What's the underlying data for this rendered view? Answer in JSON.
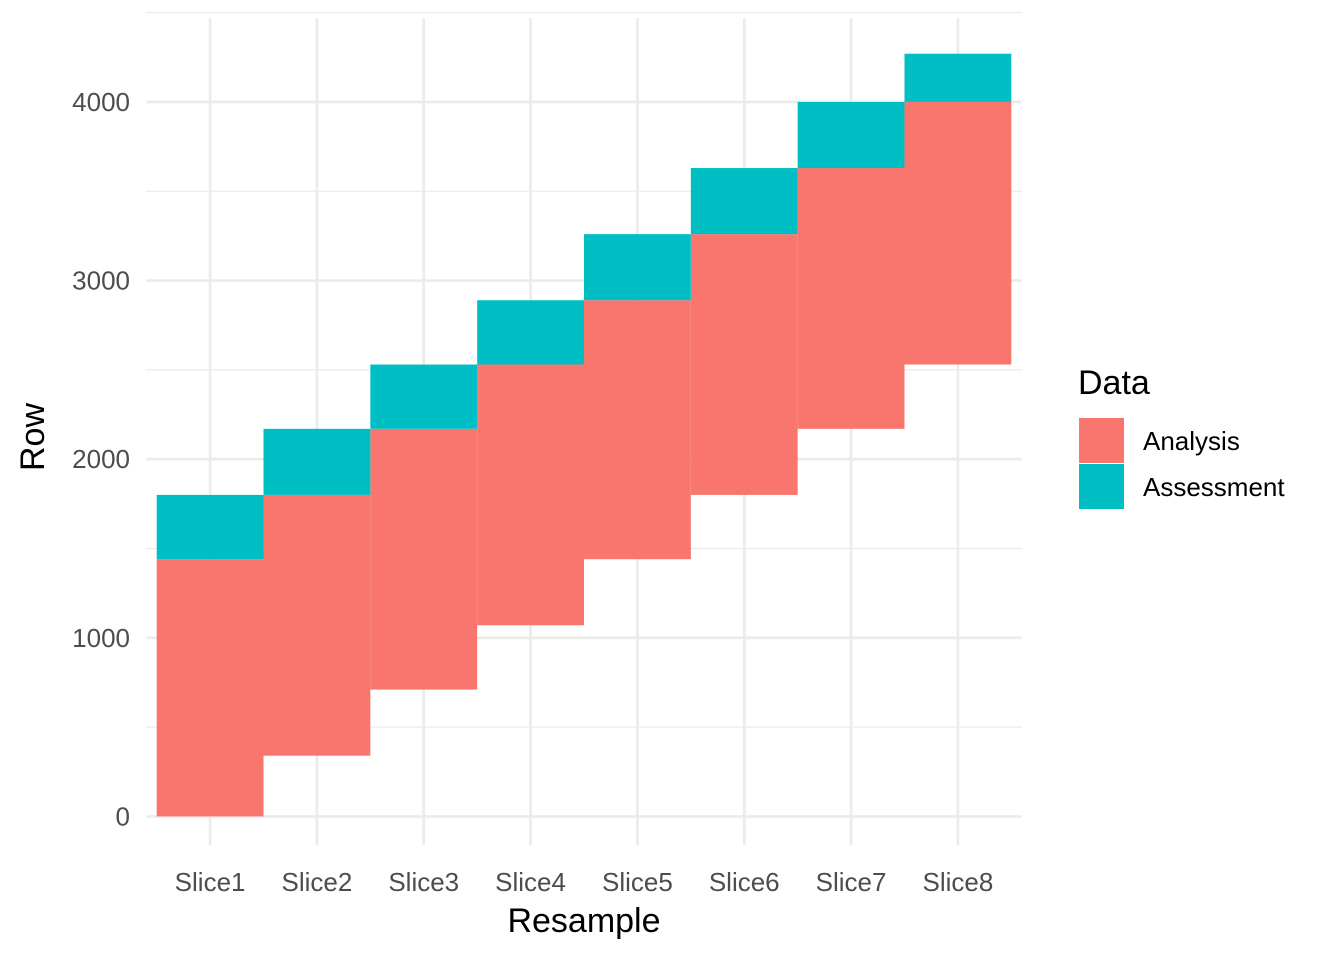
{
  "chart_data": {
    "type": "bar",
    "subtype": "stacked-range",
    "xlabel": "Resample",
    "ylabel": "Row",
    "categories": [
      "Slice1",
      "Slice2",
      "Slice3",
      "Slice4",
      "Slice5",
      "Slice6",
      "Slice7",
      "Slice8"
    ],
    "ylim": [
      -160,
      4470
    ],
    "y_ticks": [
      0,
      1000,
      2000,
      3000,
      4000
    ],
    "y_tick_labels": [
      "0",
      "1000",
      "2000",
      "3000",
      "4000"
    ],
    "grid": true,
    "legend": {
      "title": "Data",
      "position": "right",
      "entries": [
        {
          "label": "Analysis",
          "color": "#F8766D"
        },
        {
          "label": "Assessment",
          "color": "#00BFC4"
        }
      ]
    },
    "series": [
      {
        "name": "Analysis",
        "color": "#F8766D",
        "ranges": [
          [
            0,
            1440
          ],
          [
            340,
            1800
          ],
          [
            710,
            2170
          ],
          [
            1070,
            2530
          ],
          [
            1440,
            2890
          ],
          [
            1800,
            3260
          ],
          [
            2170,
            3630
          ],
          [
            2530,
            4000
          ]
        ]
      },
      {
        "name": "Assessment",
        "color": "#00BFC4",
        "ranges": [
          [
            1440,
            1800
          ],
          [
            1800,
            2170
          ],
          [
            2170,
            2530
          ],
          [
            2530,
            2890
          ],
          [
            2890,
            3260
          ],
          [
            3260,
            3630
          ],
          [
            3630,
            4000
          ],
          [
            4000,
            4270
          ]
        ]
      }
    ]
  }
}
